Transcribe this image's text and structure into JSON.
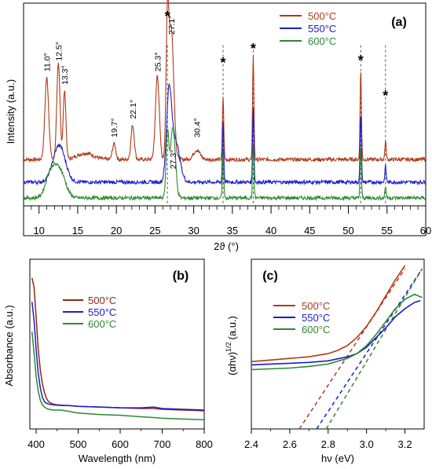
{
  "chart_data": [
    {
      "panel": "(a)",
      "type": "line",
      "xlabel": "2ϑ (°)",
      "ylabel": "Intensity (a.u.)",
      "xlim": [
        8,
        60
      ],
      "xticks": [
        "10",
        "15",
        "20",
        "25",
        "30",
        "35",
        "40",
        "45",
        "50",
        "55",
        "60"
      ],
      "legend_position": "top-right",
      "series": [
        {
          "name": "500°C",
          "color": "#b03a18",
          "baseline": 0.78,
          "peaks": [
            [
              11.0,
              1.55,
              0.35
            ],
            [
              12.5,
              1.8,
              0.3
            ],
            [
              13.3,
              1.3,
              0.25
            ],
            [
              16.0,
              0.12,
              1.5
            ],
            [
              19.7,
              0.3,
              0.3
            ],
            [
              22.1,
              0.65,
              0.3
            ],
            [
              25.3,
              1.6,
              0.35
            ],
            [
              26.6,
              2.3,
              0.25
            ],
            [
              27.1,
              2.5,
              0.45
            ],
            [
              30.4,
              0.18,
              0.6
            ],
            [
              33.8,
              1.2,
              0.12
            ],
            [
              37.7,
              2.0,
              0.12
            ],
            [
              51.6,
              1.7,
              0.12
            ],
            [
              54.8,
              0.35,
              0.12
            ]
          ]
        },
        {
          "name": "550°C",
          "color": "#1c1cc8",
          "baseline": 0.35,
          "peaks": [
            [
              12.6,
              0.7,
              1.1
            ],
            [
              26.8,
              1.55,
              0.45
            ],
            [
              27.6,
              0.8,
              0.8
            ],
            [
              33.8,
              1.15,
              0.12
            ],
            [
              37.7,
              1.4,
              0.12
            ],
            [
              51.6,
              1.3,
              0.12
            ],
            [
              54.8,
              0.3,
              0.12
            ]
          ]
        },
        {
          "name": "600°C",
          "color": "#2a8a2e",
          "baseline": 0.05,
          "peaks": [
            [
              11.5,
              0.45,
              0.9
            ],
            [
              12.7,
              0.5,
              1.0
            ],
            [
              26.6,
              1.2,
              0.25
            ],
            [
              27.3,
              1.35,
              0.45
            ],
            [
              33.8,
              0.85,
              0.12
            ],
            [
              37.7,
              1.05,
              0.12
            ],
            [
              51.6,
              0.95,
              0.12
            ],
            [
              54.8,
              0.22,
              0.12
            ]
          ]
        }
      ],
      "annotations": [
        {
          "text": "11.0°",
          "x": 11.0,
          "y": 2.45
        },
        {
          "text": "12.5°",
          "x": 12.5,
          "y": 2.65
        },
        {
          "text": "13.3°",
          "x": 13.3,
          "y": 2.2
        },
        {
          "text": "19.7°",
          "x": 19.7,
          "y": 1.2
        },
        {
          "text": "22.1°",
          "x": 22.1,
          "y": 1.55
        },
        {
          "text": "25.3°",
          "x": 25.3,
          "y": 2.45
        },
        {
          "text": "27.1°",
          "x": 27.1,
          "y": 3.15
        },
        {
          "text": "30.4°",
          "x": 30.4,
          "y": 1.2
        },
        {
          "text": "27.3°",
          "x": 27.3,
          "y": 0.6
        }
      ],
      "reference_lines": [
        26.6,
        33.8,
        37.7,
        51.6,
        54.8
      ],
      "star_markers": [
        {
          "text": "*",
          "x": 26.6
        },
        {
          "text": "*",
          "x": 33.8
        },
        {
          "text": "*",
          "x": 37.7
        },
        {
          "text": "*",
          "x": 51.6
        },
        {
          "text": "*",
          "x": 54.8
        }
      ]
    },
    {
      "panel": "(b)",
      "type": "line",
      "xlabel": "Wavelength (nm)",
      "ylabel": "Absorbance (a.u.)",
      "xlim": [
        385,
        800
      ],
      "ylim": [
        0,
        1
      ],
      "xticks": [
        "400",
        "500",
        "600",
        "700",
        "800"
      ],
      "legend_position": "middle-left",
      "series": [
        {
          "name": "500°C",
          "color": "#8b2a10",
          "x": [
            390,
            395,
            400,
            405,
            410,
            415,
            420,
            425,
            430,
            440,
            450,
            460,
            480,
            500,
            550,
            600,
            650,
            680,
            700,
            750,
            800
          ],
          "values": [
            0.98,
            0.92,
            0.72,
            0.5,
            0.36,
            0.27,
            0.21,
            0.17,
            0.15,
            0.135,
            0.13,
            0.128,
            0.125,
            0.12,
            0.115,
            0.11,
            0.105,
            0.105,
            0.1,
            0.095,
            0.09
          ]
        },
        {
          "name": "550°C",
          "color": "#1c1cc8",
          "x": [
            390,
            395,
            400,
            405,
            410,
            415,
            420,
            425,
            430,
            440,
            450,
            460,
            480,
            500,
            550,
            600,
            650,
            680,
            700,
            750,
            800
          ],
          "values": [
            0.82,
            0.7,
            0.5,
            0.34,
            0.24,
            0.18,
            0.15,
            0.14,
            0.135,
            0.13,
            0.128,
            0.126,
            0.124,
            0.12,
            0.115,
            0.11,
            0.11,
            0.115,
            0.105,
            0.1,
            0.095
          ]
        },
        {
          "name": "600°C",
          "color": "#2a8a2e",
          "x": [
            390,
            395,
            400,
            405,
            410,
            415,
            420,
            425,
            430,
            440,
            450,
            460,
            480,
            500,
            550,
            600,
            650,
            680,
            700,
            750,
            800
          ],
          "values": [
            0.62,
            0.48,
            0.32,
            0.22,
            0.16,
            0.13,
            0.115,
            0.105,
            0.1,
            0.095,
            0.095,
            0.095,
            0.085,
            0.075,
            0.065,
            0.06,
            0.05,
            0.045,
            0.04,
            0.035,
            0.03
          ]
        }
      ]
    },
    {
      "panel": "(c)",
      "type": "line",
      "xlabel": "hν (eV)",
      "ylabel": "(αhν)^1/2 (a.u.)",
      "ylabel_main": "(αhν)",
      "ylabel_sup": "1/2",
      "ylabel_unit": "(a.u.)",
      "xlim": [
        2.4,
        3.3
      ],
      "ylim": [
        0,
        1
      ],
      "xticks": [
        "2.4",
        "2.6",
        "2.8",
        "3.0",
        "3.2"
      ],
      "legend_position": "middle-left",
      "series": [
        {
          "name": "500°C",
          "color": "#b03a18",
          "x": [
            2.4,
            2.5,
            2.6,
            2.7,
            2.8,
            2.85,
            2.9,
            2.95,
            3.0,
            3.05,
            3.1,
            3.15,
            3.2
          ],
          "values": [
            0.42,
            0.43,
            0.44,
            0.45,
            0.47,
            0.49,
            0.52,
            0.57,
            0.64,
            0.73,
            0.83,
            0.93,
            1.02
          ]
        },
        {
          "name": "550°C",
          "color": "#1c1cc8",
          "x": [
            2.4,
            2.5,
            2.6,
            2.7,
            2.8,
            2.9,
            2.95,
            3.0,
            3.05,
            3.1,
            3.15,
            3.2,
            3.25,
            3.28
          ],
          "values": [
            0.4,
            0.405,
            0.41,
            0.415,
            0.425,
            0.45,
            0.47,
            0.51,
            0.57,
            0.63,
            0.7,
            0.75,
            0.79,
            0.8
          ]
        },
        {
          "name": "600°C",
          "color": "#2a8a2e",
          "x": [
            2.4,
            2.5,
            2.6,
            2.7,
            2.8,
            2.9,
            2.95,
            3.0,
            3.05,
            3.1,
            3.15,
            3.2,
            3.25,
            3.29
          ],
          "values": [
            0.37,
            0.375,
            0.38,
            0.39,
            0.405,
            0.44,
            0.47,
            0.52,
            0.59,
            0.67,
            0.75,
            0.81,
            0.84,
            0.82
          ]
        }
      ],
      "tangent_lines": [
        {
          "color": "#b03a18",
          "x0": 2.65,
          "x1": 3.2
        },
        {
          "color": "#1c1cc8",
          "x0": 2.74,
          "x1": 3.29
        },
        {
          "color": "#2a8a2e",
          "x0": 2.79,
          "x1": 3.29
        }
      ]
    }
  ]
}
